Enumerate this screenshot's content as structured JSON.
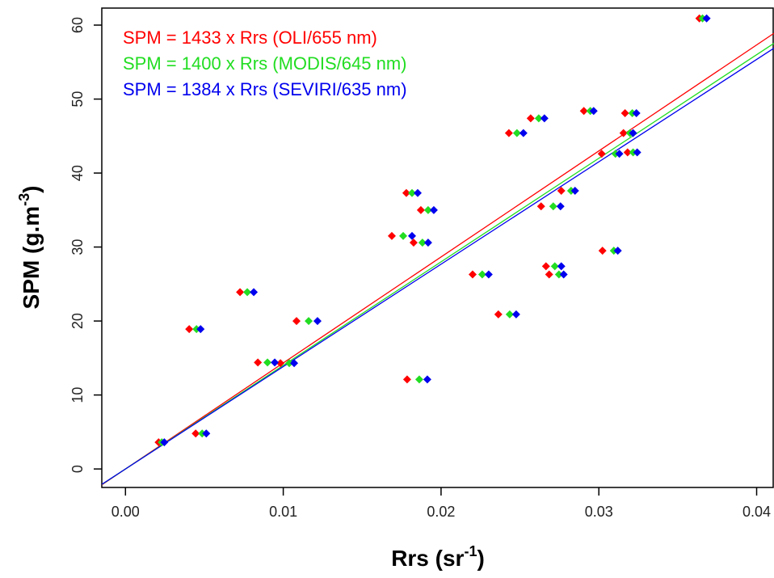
{
  "chart_data": {
    "type": "scatter",
    "xlabel": [
      "Rrs (sr",
      "-1",
      ")"
    ],
    "ylabel": [
      "SPM (g.m",
      "-3",
      ")"
    ],
    "xlim": [
      -0.0015,
      0.0411
    ],
    "ylim": [
      -2.5,
      62.3
    ],
    "xticks": [
      {
        "value": 0,
        "label": "0.00"
      },
      {
        "value": 0.01,
        "label": "0.01"
      },
      {
        "value": 0.02,
        "label": "0.02"
      },
      {
        "value": 0.03,
        "label": "0.03"
      },
      {
        "value": 0.04,
        "label": "0.04"
      }
    ],
    "yticks": [
      0,
      10,
      20,
      30,
      40,
      50,
      60
    ],
    "series": [
      {
        "name": "SPM = 1433 x Rrs (OLI/655 nm)",
        "color": "#ff0000",
        "slope": 1433,
        "x": [
          0.0021,
          0.00445,
          0.00404,
          0.00726,
          0.00839,
          0.00982,
          0.01084,
          0.01785,
          0.0178,
          0.01688,
          0.01826,
          0.01872,
          0.022,
          0.02363,
          0.0243,
          0.02568,
          0.02634,
          0.02665,
          0.02685,
          0.02762,
          0.02905,
          0.03018,
          0.03023,
          0.03156,
          0.03166,
          0.03182,
          0.03637
        ],
        "y": [
          3.6,
          4.8,
          18.9,
          23.9,
          14.4,
          14.3,
          20,
          12.1,
          37.3,
          31.5,
          30.6,
          35,
          26.3,
          20.9,
          45.4,
          47.4,
          35.5,
          27.4,
          26.3,
          37.6,
          48.4,
          42.6,
          29.5,
          45.4,
          48.1,
          42.8,
          60.9
        ]
      },
      {
        "name": "SPM = 1400 x Rrs (MODIS/645 nm)",
        "color": "#22dd22",
        "slope": 1400,
        "x": [
          0.0023,
          0.00486,
          0.0045,
          0.00772,
          0.009,
          0.01038,
          0.01161,
          0.01862,
          0.01816,
          0.0176,
          0.01882,
          0.01918,
          0.02261,
          0.02435,
          0.02481,
          0.02619,
          0.02711,
          0.02721,
          0.02747,
          0.02824,
          0.02946,
          0.03105,
          0.03095,
          0.03197,
          0.03212,
          0.03217,
          0.03657
        ],
        "y": [
          3.6,
          4.8,
          18.9,
          23.9,
          14.4,
          14.3,
          20,
          12.1,
          37.3,
          31.5,
          30.6,
          35,
          26.3,
          20.9,
          45.4,
          47.4,
          35.5,
          27.4,
          26.3,
          37.6,
          48.4,
          42.6,
          29.5,
          45.4,
          48.1,
          42.8,
          60.9
        ]
      },
      {
        "name": "SPM = 1384 x Rrs (SEVIRI/635 nm)",
        "color": "#0000ee",
        "slope": 1384,
        "x": [
          0.00246,
          0.00512,
          0.00476,
          0.00813,
          0.00946,
          0.01069,
          0.01217,
          0.01913,
          0.01852,
          0.01816,
          0.01918,
          0.01954,
          0.02302,
          0.02476,
          0.02522,
          0.02655,
          0.02757,
          0.02762,
          0.02777,
          0.02849,
          0.02967,
          0.0313,
          0.0312,
          0.03217,
          0.03238,
          0.03243,
          0.03683
        ],
        "y": [
          3.6,
          4.8,
          18.9,
          23.9,
          14.4,
          14.3,
          20,
          12.1,
          37.3,
          31.5,
          30.6,
          35,
          26.3,
          20.9,
          45.4,
          47.4,
          35.5,
          27.4,
          26.3,
          37.6,
          48.4,
          42.6,
          29.5,
          45.4,
          48.1,
          42.8,
          60.9
        ]
      }
    ]
  }
}
